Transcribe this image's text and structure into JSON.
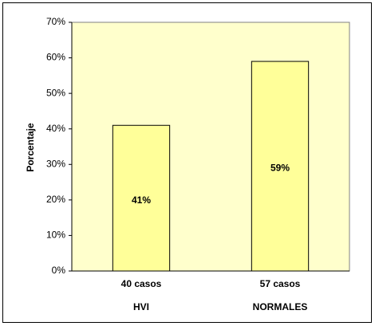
{
  "chart_data": {
    "type": "bar",
    "y_label": "Porcentaje",
    "categories": [
      [
        "40 casos",
        "HVI"
      ],
      [
        "57 casos",
        "NORMALES"
      ]
    ],
    "values": [
      41,
      59
    ],
    "value_labels": [
      "41%",
      "59%"
    ],
    "color": "#ffff99",
    "plot_background": "#ffffcc",
    "ylim": [
      0,
      70
    ],
    "yticks": [
      {
        "value": 0,
        "label": "0%"
      },
      {
        "value": 10,
        "label": "10%"
      },
      {
        "value": 20,
        "label": "20%"
      },
      {
        "value": 30,
        "label": "30%"
      },
      {
        "value": 40,
        "label": "40%"
      },
      {
        "value": 50,
        "label": "50%"
      },
      {
        "value": 60,
        "label": "60%"
      },
      {
        "value": 70,
        "label": "70%"
      }
    ],
    "grid": false
  }
}
